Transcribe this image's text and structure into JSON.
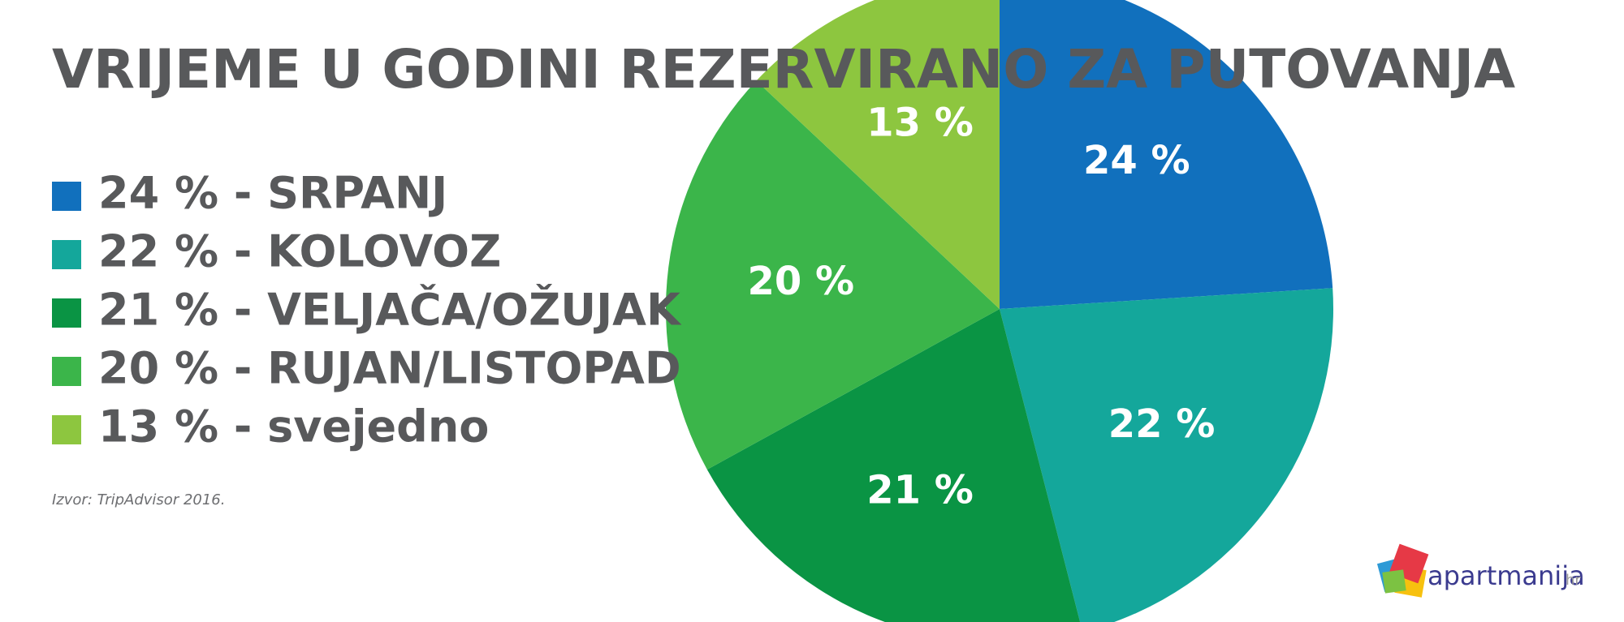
{
  "chart_data": {
    "type": "pie",
    "title": "VRIJEME U GODINI REZERVIRANO ZA PUTOVANJA",
    "categories": [
      "24 % - SRPANJ",
      "22 % - KOLOVOZ",
      "21 % - VELJAČA/OŽUJAK",
      "20 % - RUJAN/LISTOPAD",
      "13 % - svejedno"
    ],
    "values": [
      24,
      22,
      21,
      20,
      13
    ],
    "value_labels": [
      "24 %",
      "22 %",
      "21 %",
      "20 %",
      "13 %"
    ],
    "colors": [
      "#1170bd",
      "#14a79b",
      "#0a9444",
      "#3bb54a",
      "#8dc63f"
    ],
    "source": "Izvor: TripAdvisor 2016."
  },
  "logo": {
    "name": "apartmanija",
    "suffix": "hr"
  }
}
